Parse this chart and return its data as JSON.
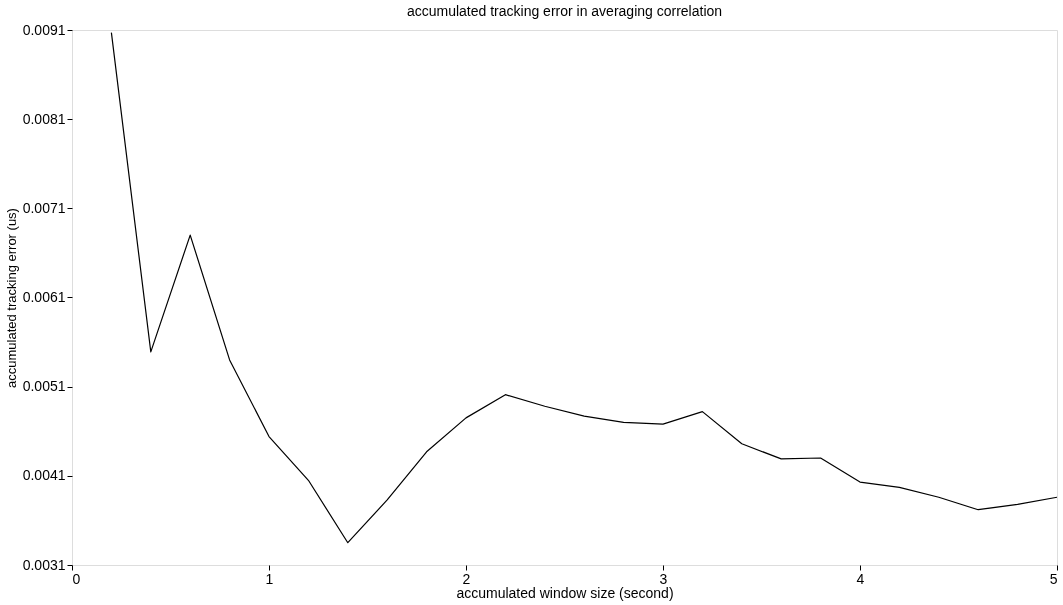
{
  "chart_data": {
    "type": "line",
    "title": "accumulated tracking error in averaging correlation",
    "xlabel": "accumulated window size (second)",
    "ylabel": "accumulated tracking error (us)",
    "x": [
      0.2,
      0.4,
      0.6,
      0.8,
      1.0,
      1.2,
      1.4,
      1.6,
      1.8,
      2.0,
      2.2,
      2.4,
      2.6,
      2.8,
      3.0,
      3.2,
      3.4,
      3.6,
      3.8,
      4.0,
      4.2,
      4.4,
      4.6,
      4.8,
      5.0
    ],
    "series": [
      {
        "color": "#000000",
        "values": [
          0.00907,
          0.00549,
          0.0068,
          0.0054,
          0.00454,
          0.00405,
          0.00335,
          0.00383,
          0.00437,
          0.00475,
          0.00501,
          0.00488,
          0.00477,
          0.0047,
          0.00468,
          0.00482,
          0.00446,
          0.00429,
          0.0043,
          0.00403,
          0.00397,
          0.00386,
          0.00372,
          0.00378,
          0.00386
        ]
      }
    ],
    "xlim": [
      0,
      5
    ],
    "xticks": [
      0,
      1,
      2,
      3,
      4,
      5
    ],
    "ylim": [
      0.0031,
      0.0091
    ],
    "yticks": [
      0.0031,
      0.0041,
      0.0051,
      0.0061,
      0.0071,
      0.0081,
      0.0091
    ],
    "grid": false,
    "legend": false,
    "marker": "none",
    "line_style": "solid"
  }
}
